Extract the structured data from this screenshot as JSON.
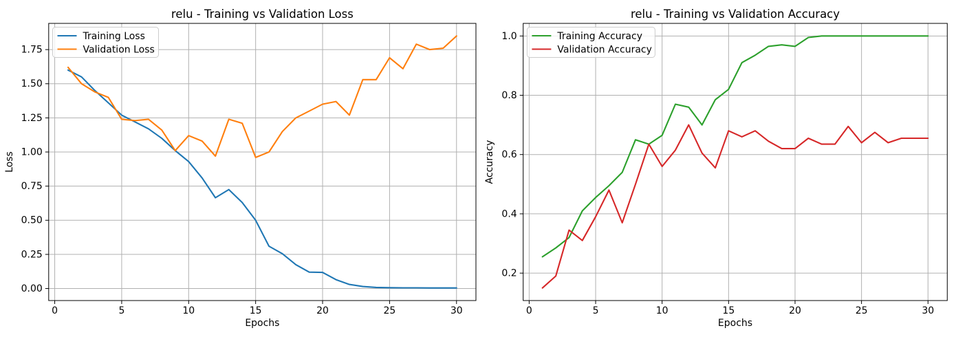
{
  "figure": {
    "background": "#ffffff",
    "grid_color": "#b0b0b0",
    "spine_color": "#000000",
    "text_color": "#000000",
    "legend_border_color": "#cccccc",
    "legend_background": "rgba(255,255,255,0.8)"
  },
  "chart_data": [
    {
      "id": "loss",
      "type": "line",
      "title": "relu - Training vs Validation Loss",
      "xlabel": "Epochs",
      "ylabel": "Loss",
      "grid": true,
      "legend_position": "upper-left",
      "xlim": [
        -0.45,
        31.45
      ],
      "ylim": [
        -0.088,
        1.942
      ],
      "xticks": [
        0,
        5,
        10,
        15,
        20,
        25,
        30
      ],
      "xtick_labels": [
        "0",
        "5",
        "10",
        "15",
        "20",
        "25",
        "30"
      ],
      "yticks": [
        0.0,
        0.25,
        0.5,
        0.75,
        1.0,
        1.25,
        1.5,
        1.75
      ],
      "ytick_labels": [
        "0.00",
        "0.25",
        "0.50",
        "0.75",
        "1.00",
        "1.25",
        "1.50",
        "1.75"
      ],
      "x": [
        1,
        2,
        3,
        4,
        5,
        6,
        7,
        8,
        9,
        10,
        11,
        12,
        13,
        14,
        15,
        16,
        17,
        18,
        19,
        20,
        21,
        22,
        23,
        24,
        25,
        26,
        27,
        28,
        29,
        30
      ],
      "series": [
        {
          "name": "Training Loss",
          "color": "#1f77b4",
          "values": [
            1.6,
            1.55,
            1.45,
            1.36,
            1.27,
            1.22,
            1.17,
            1.1,
            1.01,
            0.93,
            0.81,
            0.665,
            0.725,
            0.63,
            0.5,
            0.31,
            0.255,
            0.175,
            0.12,
            0.118,
            0.065,
            0.03,
            0.015,
            0.008,
            0.006,
            0.005,
            0.005,
            0.004,
            0.004,
            0.004
          ]
        },
        {
          "name": "Validation Loss",
          "color": "#ff7f0e",
          "values": [
            1.62,
            1.5,
            1.44,
            1.4,
            1.24,
            1.23,
            1.24,
            1.16,
            1.01,
            1.12,
            1.08,
            0.97,
            1.24,
            1.21,
            0.96,
            1.0,
            1.15,
            1.25,
            1.3,
            1.35,
            1.37,
            1.27,
            1.53,
            1.53,
            1.69,
            1.61,
            1.79,
            1.75,
            1.76,
            1.85
          ]
        }
      ]
    },
    {
      "id": "accuracy",
      "type": "line",
      "title": "relu - Training vs Validation Accuracy",
      "xlabel": "Epochs",
      "ylabel": "Accuracy",
      "grid": true,
      "legend_position": "upper-left",
      "xlim": [
        -0.45,
        31.45
      ],
      "ylim": [
        0.1075,
        1.0425
      ],
      "xticks": [
        0,
        5,
        10,
        15,
        20,
        25,
        30
      ],
      "xtick_labels": [
        "0",
        "5",
        "10",
        "15",
        "20",
        "25",
        "30"
      ],
      "yticks": [
        0.2,
        0.4,
        0.6,
        0.8,
        1.0
      ],
      "ytick_labels": [
        "0.2",
        "0.4",
        "0.6",
        "0.8",
        "1.0"
      ],
      "x": [
        1,
        2,
        3,
        4,
        5,
        6,
        7,
        8,
        9,
        10,
        11,
        12,
        13,
        14,
        15,
        16,
        17,
        18,
        19,
        20,
        21,
        22,
        23,
        24,
        25,
        26,
        27,
        28,
        29,
        30
      ],
      "series": [
        {
          "name": "Training Accuracy",
          "color": "#2ca02c",
          "values": [
            0.255,
            0.285,
            0.32,
            0.41,
            0.455,
            0.495,
            0.54,
            0.65,
            0.635,
            0.665,
            0.77,
            0.76,
            0.7,
            0.785,
            0.82,
            0.91,
            0.935,
            0.965,
            0.97,
            0.965,
            0.995,
            1.0,
            1.0,
            1.0,
            1.0,
            1.0,
            1.0,
            1.0,
            1.0,
            1.0
          ]
        },
        {
          "name": "Validation Accuracy",
          "color": "#d62728",
          "values": [
            0.15,
            0.19,
            0.345,
            0.31,
            0.39,
            0.48,
            0.37,
            0.5,
            0.635,
            0.56,
            0.615,
            0.7,
            0.605,
            0.555,
            0.68,
            0.66,
            0.68,
            0.645,
            0.62,
            0.62,
            0.655,
            0.635,
            0.635,
            0.695,
            0.64,
            0.675,
            0.64,
            0.655,
            0.655,
            0.655
          ]
        }
      ]
    }
  ]
}
